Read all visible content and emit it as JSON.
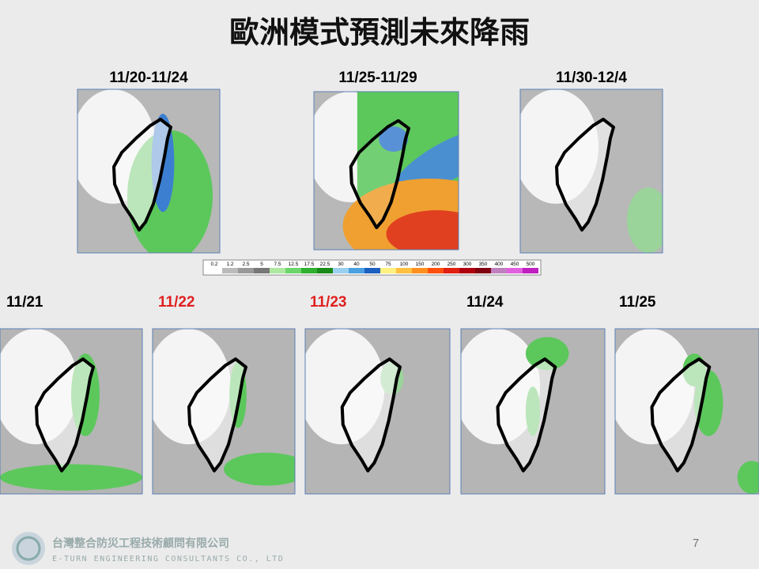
{
  "title": "歐洲模式預測未來降雨",
  "periods": [
    "11/20-11/24",
    "11/25-11/29",
    "11/30-12/4"
  ],
  "days": [
    "11/21",
    "11/22",
    "11/23",
    "11/24",
    "11/25"
  ],
  "colorbar": [
    0.2,
    1.2,
    2.5,
    5,
    7.5,
    12.5,
    17.5,
    22.5,
    30,
    40,
    50,
    75,
    100,
    150,
    200,
    250,
    300,
    350,
    400,
    450,
    500
  ],
  "footer": {
    "company_zh": "台灣整合防災工程技術顧問有限公司",
    "company_en": "E-TURN ENGINEERING CONSULTANTS CO., LTD",
    "page": "7"
  }
}
